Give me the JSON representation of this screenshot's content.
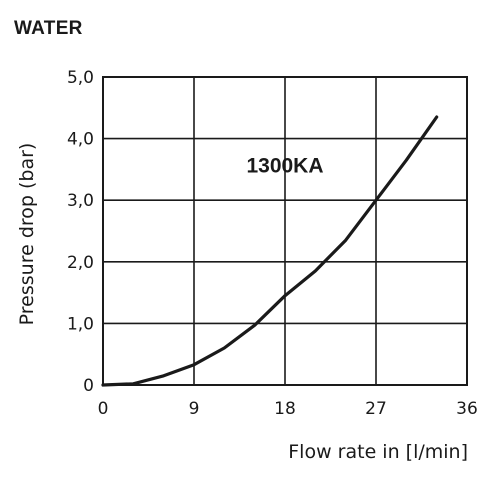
{
  "header": {
    "title": "WATER"
  },
  "chart_data": {
    "type": "line",
    "xlabel": "Flow rate in [l/min]",
    "ylabel": "Pressure drop (bar)",
    "xlim": [
      0,
      36
    ],
    "ylim": [
      0,
      5
    ],
    "x_ticks": [
      "0",
      "9",
      "18",
      "27",
      "36"
    ],
    "y_ticks": [
      "0",
      "1,0",
      "2,0",
      "3,0",
      "4,0",
      "5,0"
    ],
    "x_tick_values": [
      0,
      9,
      18,
      27,
      36
    ],
    "y_tick_values": [
      0,
      1,
      2,
      3,
      4,
      5
    ],
    "grid": true,
    "annotations": [
      {
        "text": "1300KA",
        "x": 18,
        "y": 3.45
      }
    ],
    "series": [
      {
        "name": "1300KA",
        "x": [
          0,
          3,
          6,
          9,
          12,
          15,
          18,
          21,
          24,
          27,
          30,
          33
        ],
        "y": [
          0,
          0.02,
          0.15,
          0.33,
          0.6,
          0.97,
          1.45,
          1.85,
          2.35,
          3.0,
          3.65,
          4.35
        ]
      }
    ],
    "colors": {
      "line": "#1a1a1a",
      "grid": "#1a1a1a"
    }
  }
}
